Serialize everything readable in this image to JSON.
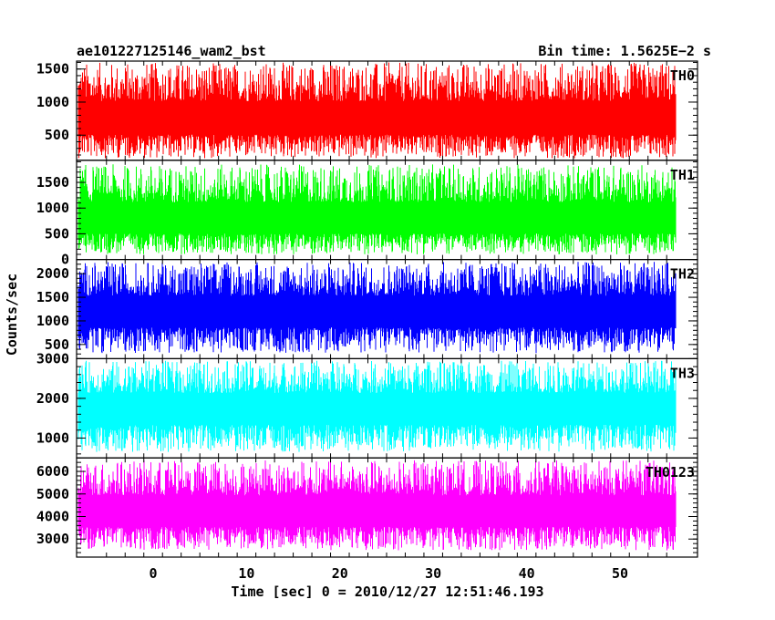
{
  "header": {
    "title": "ae101227125146_wam2_bst",
    "bin_time": "Bin time: 1.5625E−2 s"
  },
  "chart_data": {
    "type": "line",
    "xlabel": "Time [sec] 0 = 2010/12/27 12:51:46.193",
    "ylabel": "Counts/sec",
    "xlim": [
      -8.2,
      58.3
    ],
    "x_ticks": [
      0,
      10,
      20,
      30,
      40,
      50
    ],
    "x_tick_labels": [
      "0",
      "10",
      "20",
      "30",
      "40",
      "50"
    ],
    "data_x_range": [
      -8,
      56
    ],
    "grid": false,
    "panels": [
      {
        "name": "TH0",
        "color": "#ff0000",
        "ylim": [
          120,
          1620
        ],
        "y_ticks": [
          500,
          1000,
          1500
        ],
        "y_tick_labels": [
          "500",
          "1000",
          "1500"
        ],
        "mean": 700,
        "min": 150,
        "max": 1600
      },
      {
        "name": "TH1",
        "color": "#00ff00",
        "ylim": [
          0,
          1930
        ],
        "y_ticks": [
          0,
          500,
          1000,
          1500
        ],
        "y_tick_labels": [
          "0",
          "500",
          "1000",
          "1500"
        ],
        "mean": 720,
        "min": 100,
        "max": 1850
      },
      {
        "name": "TH2",
        "color": "#0000ff",
        "ylim": [
          200,
          2300
        ],
        "y_ticks": [
          500,
          1000,
          1500,
          2000
        ],
        "y_tick_labels": [
          "500",
          "1000",
          "1500",
          "2000"
        ],
        "mean": 1150,
        "min": 320,
        "max": 2250
      },
      {
        "name": "TH3",
        "color": "#00ffff",
        "ylim": [
          500,
          3000
        ],
        "y_ticks": [
          1000,
          2000,
          3000
        ],
        "y_tick_labels": [
          "1000",
          "2000",
          "3000"
        ],
        "mean": 1700,
        "min": 650,
        "max": 2950
      },
      {
        "name": "TH0123",
        "color": "#ff00ff",
        "ylim": [
          2200,
          6600
        ],
        "y_ticks": [
          3000,
          4000,
          5000,
          6000
        ],
        "y_tick_labels": [
          "3000",
          "4000",
          "5000",
          "6000"
        ],
        "mean": 4100,
        "min": 2500,
        "max": 6500
      }
    ]
  }
}
